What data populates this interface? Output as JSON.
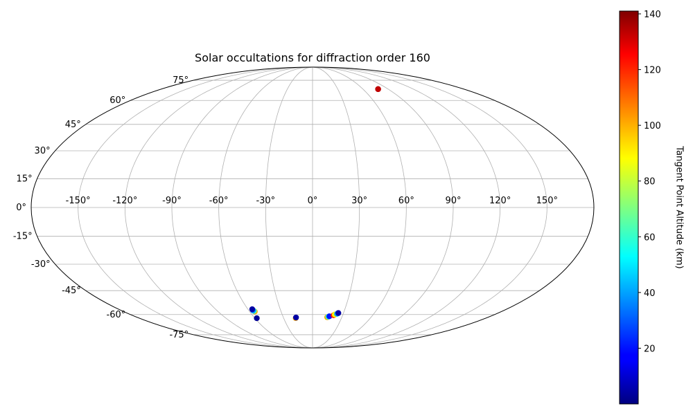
{
  "chart_data": {
    "type": "scatter",
    "projection": "mollweide",
    "title": "Solar occultations for diffraction order 160",
    "grid": true,
    "longitude_ticks": [
      -150,
      -120,
      -90,
      -60,
      -30,
      0,
      30,
      60,
      90,
      120,
      150
    ],
    "longitude_tick_labels": [
      "-150°",
      "-120°",
      "-90°",
      "-60°",
      "-30°",
      "0°",
      "30°",
      "60°",
      "90°",
      "120°",
      "150°"
    ],
    "latitude_ticks": [
      75,
      60,
      45,
      30,
      15,
      0,
      -15,
      -30,
      -45,
      -60,
      -75
    ],
    "latitude_tick_labels": [
      "75°",
      "60°",
      "45°",
      "30°",
      "15°",
      "0°",
      "-15°",
      "-30°",
      "-45°",
      "-60°",
      "-75°"
    ],
    "colorbar": {
      "label": "Tangent Point Altitude (km)",
      "colormap": "jet",
      "range": [
        0,
        141
      ],
      "ticks": [
        20,
        40,
        60,
        80,
        100,
        120,
        140
      ],
      "tick_labels": [
        "20",
        "40",
        "60",
        "80",
        "100",
        "120",
        "140"
      ]
    },
    "points": [
      {
        "lon": 78,
        "lat": 68,
        "altitude": 140
      },
      {
        "lon": 78,
        "lat": 68,
        "altitude": 132
      },
      {
        "lon": -55,
        "lat": -58,
        "altitude": 100
      },
      {
        "lon": -55.5,
        "lat": -57.6,
        "altitude": 60
      },
      {
        "lon": -56,
        "lat": -57.2,
        "altitude": 35
      },
      {
        "lon": -56,
        "lat": -56.5,
        "altitude": 5
      },
      {
        "lon": -58,
        "lat": -62.5,
        "altitude": 3
      },
      {
        "lon": -17.5,
        "lat": -62.4,
        "altitude": 100
      },
      {
        "lon": -17,
        "lat": -62,
        "altitude": 5
      },
      {
        "lon": 15,
        "lat": -61.8,
        "altitude": 100
      },
      {
        "lon": 16,
        "lat": -61.5,
        "altitude": 60
      },
      {
        "lon": 17,
        "lat": -61.2,
        "altitude": 20
      },
      {
        "lon": 21,
        "lat": -60.5,
        "altitude": 120
      },
      {
        "lon": 22,
        "lat": -60,
        "altitude": 90
      },
      {
        "lon": 24,
        "lat": -59.5,
        "altitude": 40
      },
      {
        "lon": 25,
        "lat": -59,
        "altitude": 5
      }
    ]
  }
}
